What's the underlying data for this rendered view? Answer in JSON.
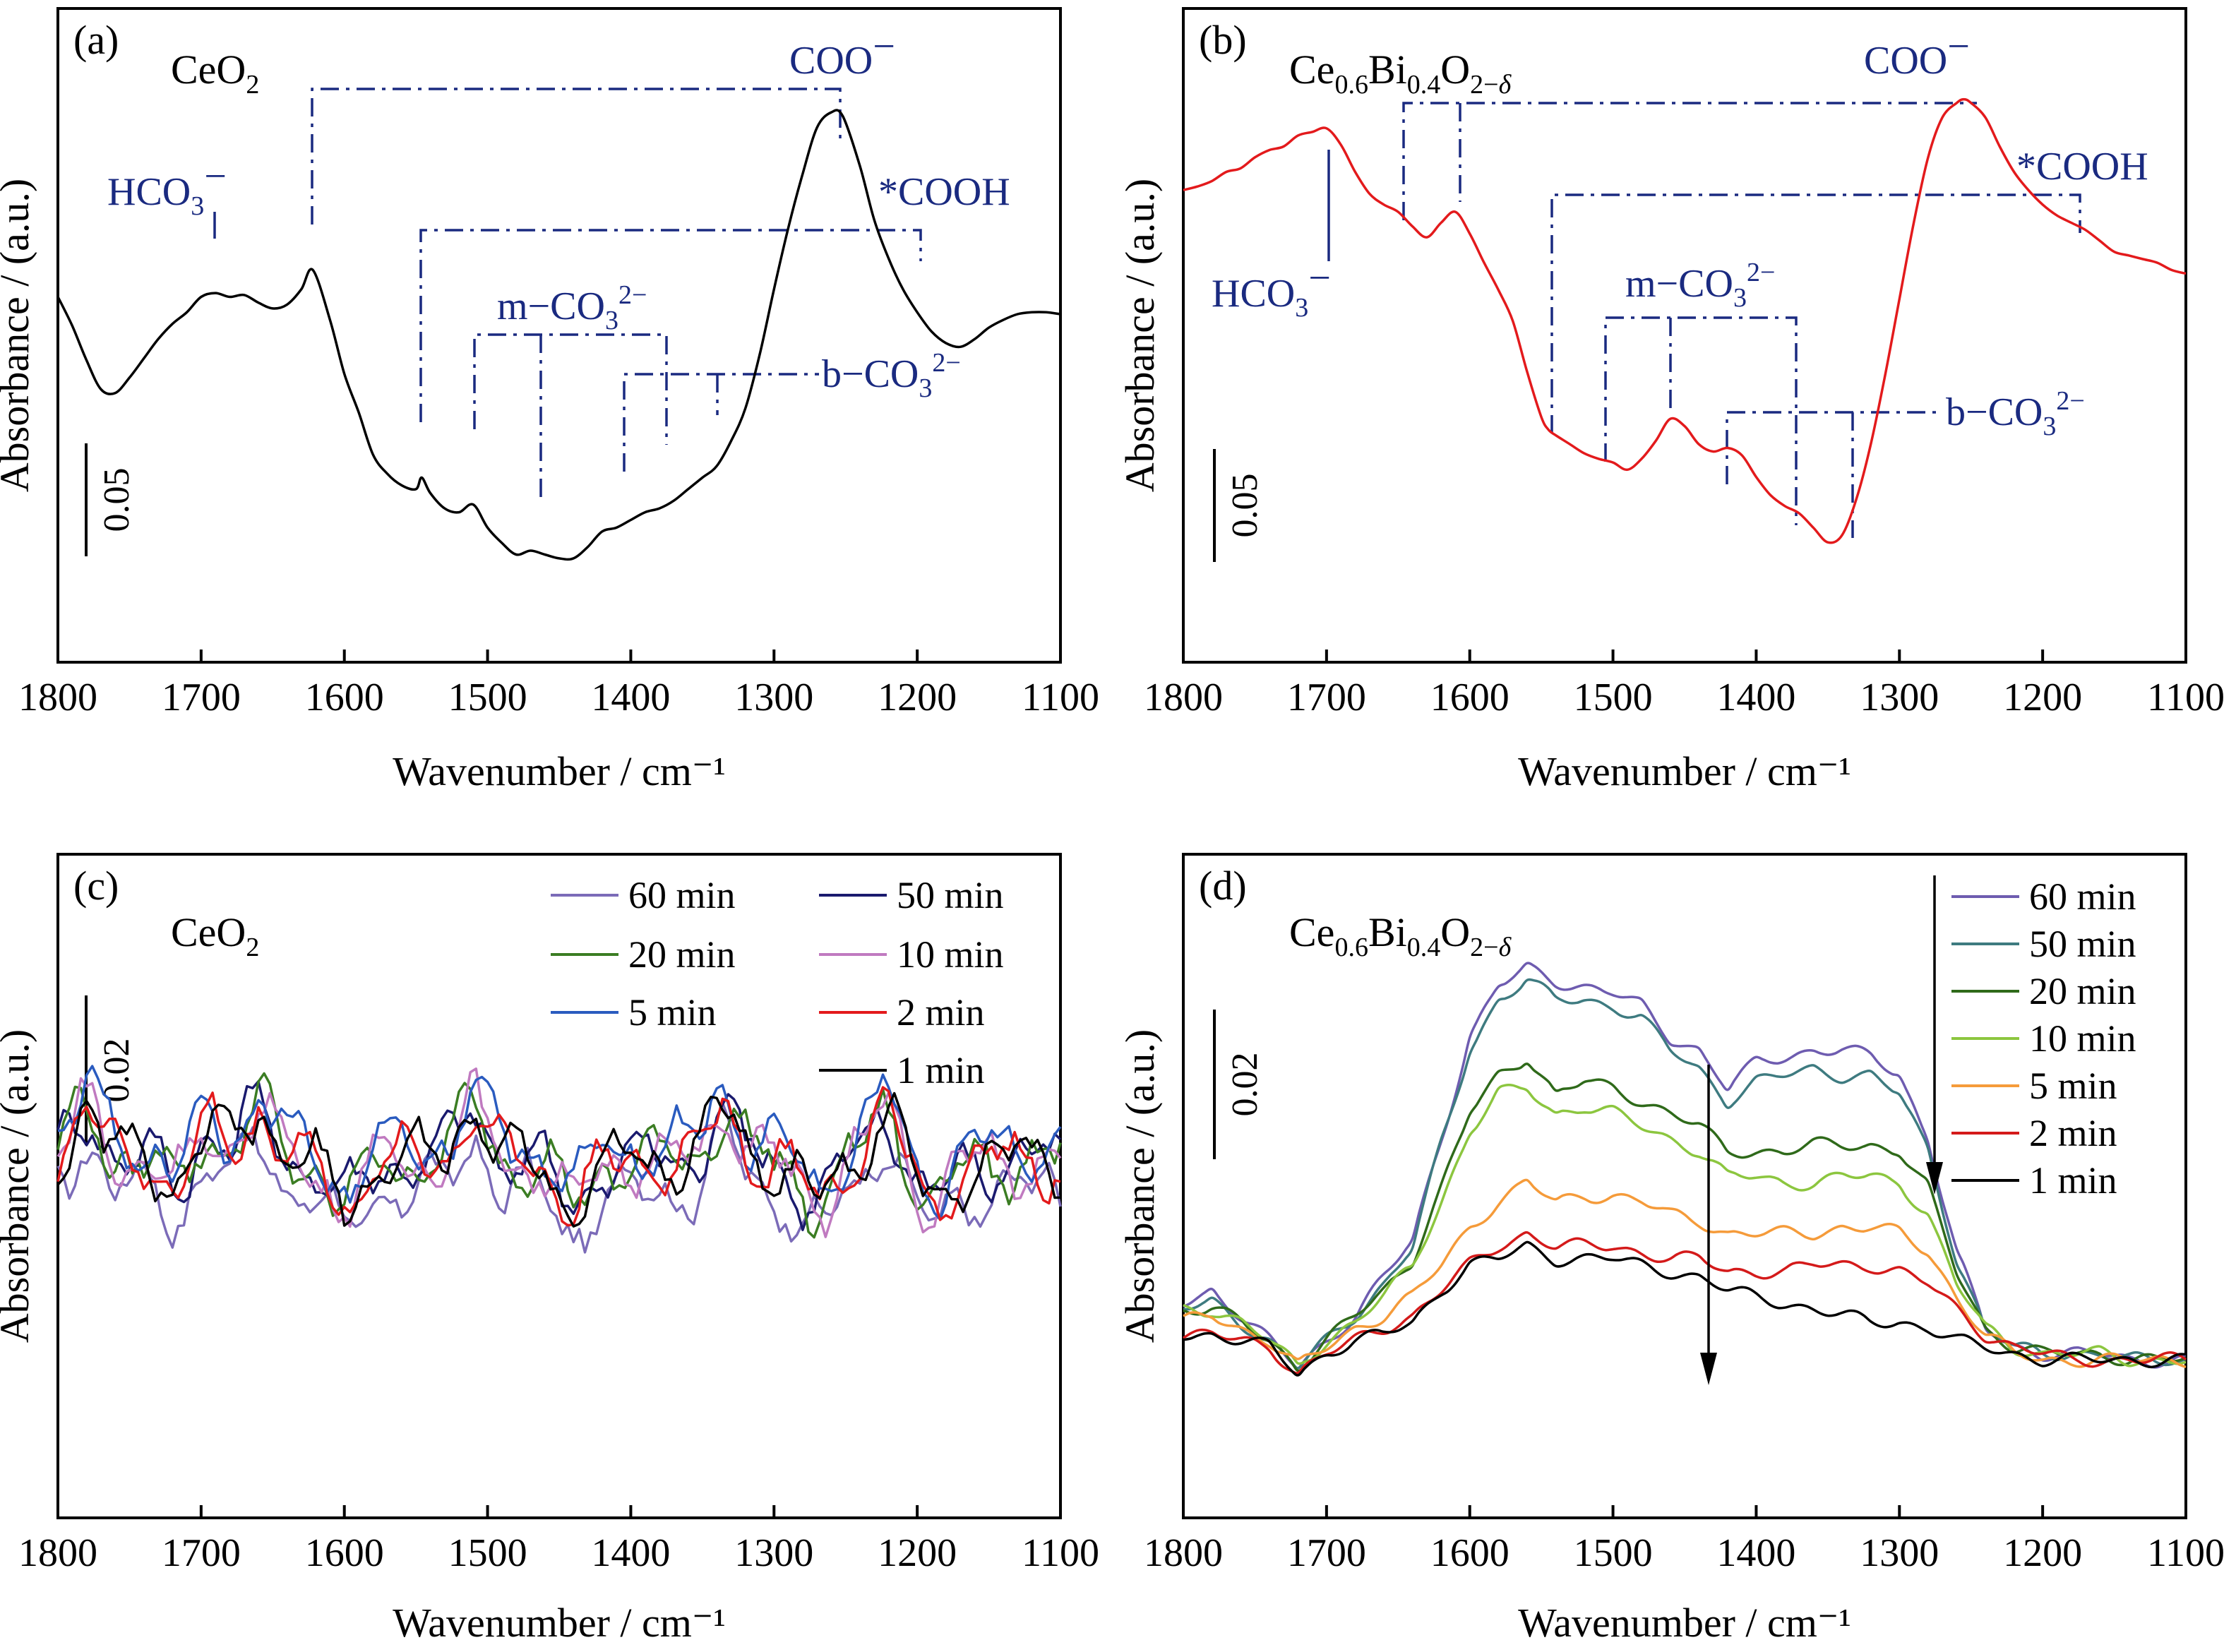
{
  "colors": {
    "annotation": "#1a2a80",
    "a_curve": "#000000",
    "b_curve": "#e31a1c"
  },
  "chart_data": [
    {
      "panel": "(a)",
      "sample": "CeO2",
      "type": "line",
      "xlabel": "Wavenumber / cm⁻¹",
      "ylabel": "Absorbance / (a.u.)",
      "xlim": [
        1800,
        1100
      ],
      "xticks": [
        1800,
        1700,
        1600,
        1500,
        1400,
        1300,
        1200,
        1100
      ],
      "scale_bar": "0.05",
      "annotations": [
        {
          "label": "HCO3⁻",
          "positions": [
            1688
          ]
        },
        {
          "label": "COO⁻",
          "positions": [
            1622,
            1252
          ]
        },
        {
          "label": "*COOH",
          "positions": [
            1546,
            1195
          ]
        },
        {
          "label": "m−CO3²⁻",
          "positions": [
            1508,
            1462,
            1377
          ]
        },
        {
          "label": "b−CO3²⁻",
          "positions": [
            1404,
            1337
          ]
        }
      ],
      "series": [
        {
          "color": "#000000",
          "x": [
            1800,
            1790,
            1780,
            1770,
            1760,
            1750,
            1740,
            1730,
            1720,
            1710,
            1700,
            1690,
            1680,
            1670,
            1660,
            1650,
            1640,
            1630,
            1622,
            1610,
            1600,
            1590,
            1580,
            1570,
            1560,
            1550,
            1546,
            1540,
            1530,
            1520,
            1510,
            1500,
            1490,
            1480,
            1470,
            1460,
            1450,
            1440,
            1430,
            1420,
            1410,
            1400,
            1390,
            1380,
            1370,
            1360,
            1350,
            1340,
            1330,
            1320,
            1310,
            1300,
            1290,
            1280,
            1270,
            1260,
            1252,
            1240,
            1230,
            1220,
            1210,
            1200,
            1190,
            1180,
            1170,
            1160,
            1150,
            1140,
            1130,
            1120,
            1110,
            1100
          ],
          "y": [
            0.03,
            0.015,
            -0.003,
            -0.018,
            -0.02,
            -0.012,
            -0.002,
            0.008,
            0.016,
            0.022,
            0.03,
            0.032,
            0.03,
            0.031,
            0.027,
            0.024,
            0.026,
            0.034,
            0.044,
            0.018,
            -0.01,
            -0.03,
            -0.052,
            -0.062,
            -0.068,
            -0.07,
            -0.064,
            -0.072,
            -0.08,
            -0.082,
            -0.078,
            -0.09,
            -0.098,
            -0.104,
            -0.102,
            -0.104,
            -0.106,
            -0.106,
            -0.1,
            -0.092,
            -0.09,
            -0.086,
            -0.082,
            -0.08,
            -0.076,
            -0.07,
            -0.064,
            -0.058,
            -0.045,
            -0.028,
            0.0,
            0.034,
            0.066,
            0.094,
            0.118,
            0.126,
            0.124,
            0.098,
            0.07,
            0.05,
            0.034,
            0.022,
            0.012,
            0.006,
            0.004,
            0.008,
            0.014,
            0.018,
            0.021,
            0.022,
            0.022,
            0.021
          ]
        }
      ]
    },
    {
      "panel": "(b)",
      "sample": "Ce0.6Bi0.4O2−δ",
      "type": "line",
      "xlabel": "Wavenumber / cm⁻¹",
      "ylabel": "Absorbance / (a.u.)",
      "xlim": [
        1800,
        1100
      ],
      "xticks": [
        1800,
        1700,
        1600,
        1500,
        1400,
        1300,
        1200,
        1100
      ],
      "scale_bar": "0.05",
      "annotations": [
        {
          "label": "HCO3⁻",
          "positions": [
            1700
          ]
        },
        {
          "label": "COO⁻",
          "positions": [
            1650,
            1610,
            1250
          ]
        },
        {
          "label": "*COOH",
          "positions": [
            1544,
            1175
          ]
        },
        {
          "label": "m−CO3²⁻",
          "positions": [
            1508,
            1462,
            1378
          ]
        },
        {
          "label": "b−CO3²⁻",
          "positions": [
            1424,
            1335
          ]
        }
      ],
      "series": [
        {
          "color": "#e31a1c",
          "x": [
            1800,
            1790,
            1780,
            1770,
            1760,
            1750,
            1740,
            1730,
            1720,
            1710,
            1700,
            1690,
            1680,
            1670,
            1660,
            1650,
            1640,
            1630,
            1620,
            1610,
            1600,
            1590,
            1580,
            1570,
            1560,
            1550,
            1545,
            1540,
            1530,
            1520,
            1510,
            1500,
            1490,
            1480,
            1470,
            1460,
            1450,
            1440,
            1430,
            1420,
            1410,
            1400,
            1390,
            1380,
            1370,
            1360,
            1350,
            1340,
            1330,
            1320,
            1310,
            1300,
            1290,
            1280,
            1270,
            1260,
            1255,
            1250,
            1240,
            1230,
            1220,
            1210,
            1200,
            1190,
            1180,
            1170,
            1160,
            1150,
            1140,
            1130,
            1120,
            1110,
            1100
          ],
          "y": [
            0.1,
            0.102,
            0.105,
            0.11,
            0.112,
            0.118,
            0.122,
            0.124,
            0.13,
            0.132,
            0.134,
            0.125,
            0.11,
            0.098,
            0.092,
            0.088,
            0.08,
            0.074,
            0.082,
            0.088,
            0.076,
            0.06,
            0.045,
            0.028,
            0.0,
            -0.025,
            -0.032,
            -0.035,
            -0.04,
            -0.045,
            -0.048,
            -0.05,
            -0.054,
            -0.048,
            -0.038,
            -0.026,
            -0.03,
            -0.04,
            -0.044,
            -0.042,
            -0.046,
            -0.058,
            -0.068,
            -0.074,
            -0.078,
            -0.086,
            -0.094,
            -0.09,
            -0.07,
            -0.04,
            -0.002,
            0.04,
            0.082,
            0.118,
            0.14,
            0.148,
            0.15,
            0.148,
            0.14,
            0.124,
            0.11,
            0.1,
            0.092,
            0.086,
            0.082,
            0.078,
            0.072,
            0.066,
            0.064,
            0.062,
            0.06,
            0.056,
            0.054
          ]
        }
      ]
    },
    {
      "panel": "(c)",
      "sample": "CeO2",
      "type": "line",
      "xlabel": "Wavenumber / cm⁻¹",
      "ylabel": "Absorbance / (a.u.)",
      "xlim": [
        1800,
        1100
      ],
      "xticks": [
        1800,
        1700,
        1600,
        1500,
        1400,
        1300,
        1200,
        1100
      ],
      "scale_bar": "0.02",
      "series": [
        {
          "name": "60 min",
          "color": "#7b6bb8"
        },
        {
          "name": "50 min",
          "color": "#1a1a6e"
        },
        {
          "name": "20 min",
          "color": "#3b7d23"
        },
        {
          "name": "10 min",
          "color": "#c07ac0"
        },
        {
          "name": "5 min",
          "color": "#2a5bbf"
        },
        {
          "name": "2 min",
          "color": "#e31a1c"
        },
        {
          "name": "1 min",
          "color": "#000000"
        }
      ],
      "peaks_x": [
        1780,
        1700,
        1660,
        1510,
        1335,
        1222
      ],
      "troughs_x": [
        1710,
        1600,
        1440,
        1270,
        1190
      ]
    },
    {
      "panel": "(d)",
      "sample": "Ce0.6Bi0.4O2−δ",
      "type": "line",
      "xlabel": "Wavenumber / cm⁻¹",
      "ylabel": "Absorbance / (a.u.)",
      "xlim": [
        1800,
        1100
      ],
      "xticks": [
        1800,
        1700,
        1600,
        1500,
        1400,
        1300,
        1200,
        1100
      ],
      "scale_bar": "0.02",
      "x": [
        1800,
        1780,
        1760,
        1740,
        1720,
        1700,
        1680,
        1660,
        1640,
        1620,
        1600,
        1580,
        1560,
        1540,
        1520,
        1500,
        1480,
        1460,
        1440,
        1420,
        1400,
        1380,
        1360,
        1340,
        1320,
        1300,
        1280,
        1260,
        1240,
        1220,
        1200,
        1180,
        1160,
        1140,
        1120,
        1100
      ],
      "series": [
        {
          "name": "60 min",
          "color": "#6e5cb0",
          "y": [
            0.004,
            0.006,
            0.002,
            -0.002,
            -0.006,
            -0.002,
            0.002,
            0.008,
            0.014,
            0.03,
            0.046,
            0.054,
            0.057,
            0.055,
            0.054,
            0.053,
            0.051,
            0.046,
            0.044,
            0.038,
            0.042,
            0.043,
            0.044,
            0.044,
            0.043,
            0.04,
            0.03,
            0.012,
            0.0,
            -0.003,
            -0.004,
            -0.004,
            -0.004,
            -0.005,
            -0.005,
            -0.005
          ]
        },
        {
          "name": "50 min",
          "color": "#3e7b80",
          "y": [
            0.003,
            0.004,
            0.001,
            -0.002,
            -0.006,
            -0.002,
            0.002,
            0.007,
            0.013,
            0.029,
            0.044,
            0.052,
            0.055,
            0.052,
            0.052,
            0.051,
            0.049,
            0.044,
            0.041,
            0.036,
            0.039,
            0.04,
            0.041,
            0.04,
            0.04,
            0.037,
            0.028,
            0.011,
            0.0,
            -0.003,
            -0.004,
            -0.004,
            -0.004,
            -0.005,
            -0.005,
            -0.005
          ]
        },
        {
          "name": "20 min",
          "color": "#2f6a1a",
          "y": [
            0.003,
            0.003,
            0.001,
            -0.002,
            -0.006,
            -0.002,
            0.002,
            0.006,
            0.011,
            0.022,
            0.034,
            0.04,
            0.043,
            0.037,
            0.039,
            0.038,
            0.036,
            0.034,
            0.032,
            0.028,
            0.028,
            0.028,
            0.029,
            0.029,
            0.029,
            0.028,
            0.022,
            0.009,
            0.0,
            -0.003,
            -0.004,
            -0.004,
            -0.004,
            -0.005,
            -0.005,
            -0.005
          ]
        },
        {
          "name": "10 min",
          "color": "#8cc63f",
          "y": [
            0.003,
            0.003,
            0.001,
            -0.002,
            -0.006,
            -0.002,
            0.001,
            0.005,
            0.01,
            0.02,
            0.031,
            0.037,
            0.038,
            0.034,
            0.035,
            0.034,
            0.032,
            0.03,
            0.028,
            0.024,
            0.024,
            0.023,
            0.023,
            0.024,
            0.024,
            0.023,
            0.018,
            0.007,
            0.0,
            -0.003,
            -0.004,
            -0.004,
            -0.004,
            -0.005,
            -0.005,
            -0.005
          ]
        },
        {
          "name": "5 min",
          "color": "#f59b3a",
          "y": [
            0.001,
            0.002,
            0.0,
            -0.002,
            -0.006,
            -0.003,
            0.0,
            0.002,
            0.005,
            0.01,
            0.016,
            0.02,
            0.023,
            0.02,
            0.021,
            0.021,
            0.02,
            0.018,
            0.017,
            0.015,
            0.015,
            0.015,
            0.015,
            0.016,
            0.016,
            0.015,
            0.012,
            0.005,
            -0.001,
            -0.004,
            -0.005,
            -0.005,
            -0.005,
            -0.005,
            -0.005,
            -0.005
          ]
        },
        {
          "name": "2 min",
          "color": "#d41a1a",
          "y": [
            -0.001,
            -0.001,
            -0.002,
            -0.003,
            -0.007,
            -0.004,
            -0.002,
            0.0,
            0.002,
            0.006,
            0.01,
            0.013,
            0.015,
            0.013,
            0.013,
            0.013,
            0.012,
            0.011,
            0.011,
            0.009,
            0.009,
            0.009,
            0.01,
            0.01,
            0.01,
            0.009,
            0.007,
            0.003,
            -0.001,
            -0.003,
            -0.004,
            -0.005,
            -0.005,
            -0.005,
            -0.005,
            -0.005
          ]
        },
        {
          "name": "1 min",
          "color": "#000000",
          "y": [
            -0.001,
            -0.001,
            -0.002,
            -0.003,
            -0.007,
            -0.004,
            -0.002,
            -0.001,
            0.001,
            0.006,
            0.01,
            0.011,
            0.013,
            0.011,
            0.011,
            0.011,
            0.01,
            0.009,
            0.008,
            0.006,
            0.005,
            0.004,
            0.003,
            0.002,
            0.001,
            0.001,
            0.0,
            -0.002,
            -0.003,
            -0.004,
            -0.005,
            -0.005,
            -0.005,
            -0.005,
            -0.005,
            -0.005
          ]
        }
      ]
    }
  ]
}
